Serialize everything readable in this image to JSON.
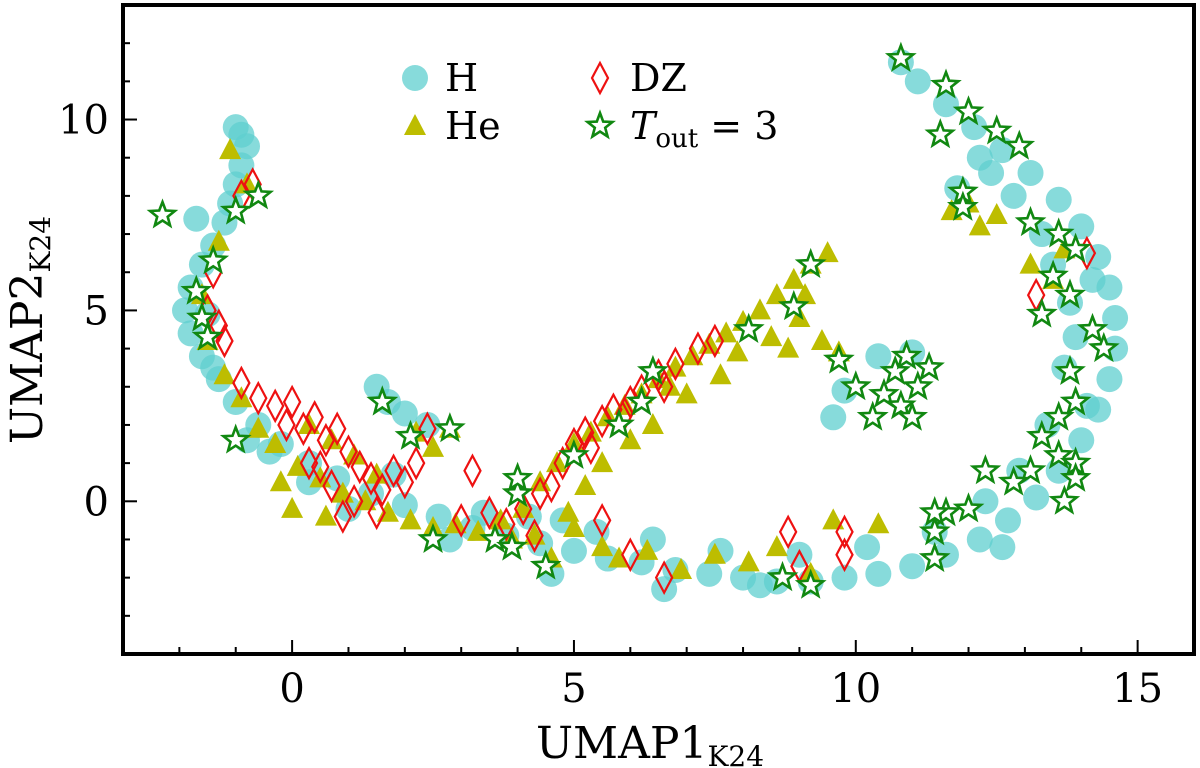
{
  "chart_data": {
    "type": "scatter",
    "title": "",
    "xlabel": "UMAP1",
    "xlabel_sub": "K24",
    "ylabel": "UMAP2",
    "ylabel_sub": "K24",
    "xlim": [
      -3,
      16
    ],
    "ylim": [
      -4,
      13
    ],
    "xticks": [
      0,
      5,
      10,
      15
    ],
    "yticks": [
      0,
      5,
      10
    ],
    "grid": false,
    "legend_position": "top-center",
    "colors": {
      "H": "#5fcfcf",
      "He": "#bdbd00",
      "DZ": "#ee1111",
      "Tout": "#118811"
    },
    "legend": [
      {
        "key": "H",
        "label": "H",
        "marker": "circle"
      },
      {
        "key": "He",
        "label": "He",
        "marker": "triangle"
      },
      {
        "key": "DZ",
        "label": "DZ",
        "marker": "diamond"
      },
      {
        "key": "Tout",
        "label": "T",
        "label_sub": "out",
        "label_suffix": " = 3",
        "marker": "star"
      }
    ],
    "series": [
      {
        "name": "H",
        "points": [
          [
            -1.0,
            9.8
          ],
          [
            -0.9,
            9.6
          ],
          [
            -0.8,
            9.3
          ],
          [
            -0.9,
            8.8
          ],
          [
            -1.0,
            8.3
          ],
          [
            -1.1,
            7.8
          ],
          [
            -1.2,
            7.3
          ],
          [
            -1.7,
            7.4
          ],
          [
            -1.4,
            6.7
          ],
          [
            -1.6,
            6.2
          ],
          [
            -1.8,
            5.6
          ],
          [
            -1.9,
            5.0
          ],
          [
            -1.8,
            4.4
          ],
          [
            -1.6,
            3.8
          ],
          [
            -1.3,
            3.2
          ],
          [
            -1.0,
            2.6
          ],
          [
            -0.6,
            2.0
          ],
          [
            -0.2,
            1.5
          ],
          [
            0.3,
            1.0
          ],
          [
            0.8,
            0.6
          ],
          [
            1.4,
            0.2
          ],
          [
            2.0,
            -0.1
          ],
          [
            2.6,
            -0.4
          ],
          [
            3.2,
            -0.7
          ],
          [
            3.8,
            -0.9
          ],
          [
            4.4,
            -1.1
          ],
          [
            5.0,
            -1.3
          ],
          [
            5.6,
            -1.5
          ],
          [
            6.2,
            -1.6
          ],
          [
            6.8,
            -1.8
          ],
          [
            7.4,
            -1.9
          ],
          [
            8.0,
            -2.0
          ],
          [
            8.6,
            -2.1
          ],
          [
            9.2,
            -2.1
          ],
          [
            9.8,
            -2.0
          ],
          [
            10.4,
            -1.9
          ],
          [
            11.0,
            -1.7
          ],
          [
            11.6,
            -1.4
          ],
          [
            12.2,
            -1.0
          ],
          [
            12.7,
            -0.5
          ],
          [
            13.2,
            0.1
          ],
          [
            13.6,
            0.8
          ],
          [
            14.0,
            1.6
          ],
          [
            14.3,
            2.4
          ],
          [
            14.5,
            3.2
          ],
          [
            14.6,
            4.0
          ],
          [
            14.6,
            4.8
          ],
          [
            14.5,
            5.6
          ],
          [
            14.3,
            6.4
          ],
          [
            14.0,
            7.2
          ],
          [
            13.6,
            7.9
          ],
          [
            13.1,
            8.6
          ],
          [
            12.6,
            9.2
          ],
          [
            12.1,
            9.8
          ],
          [
            11.6,
            10.4
          ],
          [
            11.1,
            11.0
          ],
          [
            10.8,
            11.5
          ],
          [
            11.8,
            8.2
          ],
          [
            12.2,
            9.0
          ],
          [
            12.8,
            8.0
          ],
          [
            13.3,
            7.0
          ],
          [
            13.8,
            5.2
          ],
          [
            13.7,
            3.5
          ],
          [
            13.4,
            2.0
          ],
          [
            12.9,
            0.8
          ],
          [
            12.3,
            0.0
          ],
          [
            11.4,
            -0.8
          ],
          [
            10.2,
            -1.2
          ],
          [
            9.0,
            -1.4
          ],
          [
            7.6,
            -1.3
          ],
          [
            6.4,
            -1.0
          ],
          [
            5.4,
            -0.8
          ],
          [
            4.8,
            -0.5
          ],
          [
            4.2,
            -0.4
          ],
          [
            3.4,
            -0.3
          ],
          [
            1.8,
            0.7
          ],
          [
            1.5,
            3.0
          ],
          [
            1.7,
            2.6
          ],
          [
            2.0,
            2.3
          ],
          [
            2.4,
            2.0
          ],
          [
            9.6,
            2.2
          ],
          [
            9.8,
            2.9
          ],
          [
            10.4,
            3.8
          ],
          [
            11.0,
            3.9
          ],
          [
            0.3,
            0.5
          ],
          [
            -0.4,
            1.3
          ],
          [
            -1.5,
            4.9
          ],
          [
            13.9,
            4.3
          ],
          [
            14.2,
            5.8
          ],
          [
            12.6,
            -1.2
          ],
          [
            8.3,
            -2.2
          ],
          [
            6.6,
            -2.3
          ],
          [
            4.6,
            -1.9
          ],
          [
            2.8,
            -1.0
          ],
          [
            1.0,
            -0.2
          ],
          [
            -0.8,
            1.6
          ],
          [
            -1.4,
            3.5
          ],
          [
            14.1,
            2.5
          ],
          [
            13.5,
            6.2
          ],
          [
            12.4,
            8.6
          ]
        ]
      },
      {
        "name": "He",
        "points": [
          [
            -1.1,
            9.2
          ],
          [
            -0.8,
            8.3
          ],
          [
            -1.3,
            6.8
          ],
          [
            -1.6,
            5.4
          ],
          [
            -1.5,
            4.2
          ],
          [
            -1.2,
            3.3
          ],
          [
            -0.9,
            2.7
          ],
          [
            -0.6,
            1.9
          ],
          [
            -0.3,
            1.5
          ],
          [
            0.1,
            0.9
          ],
          [
            0.5,
            0.6
          ],
          [
            0.9,
            0.2
          ],
          [
            1.3,
            0.0
          ],
          [
            1.7,
            -0.3
          ],
          [
            2.1,
            -0.5
          ],
          [
            2.5,
            -0.7
          ],
          [
            2.9,
            -0.6
          ],
          [
            3.3,
            -0.8
          ],
          [
            3.7,
            -0.5
          ],
          [
            4.1,
            -0.2
          ],
          [
            4.4,
            0.5
          ],
          [
            4.7,
            1.0
          ],
          [
            5.0,
            1.5
          ],
          [
            5.3,
            1.8
          ],
          [
            5.6,
            2.2
          ],
          [
            5.9,
            2.5
          ],
          [
            6.2,
            2.8
          ],
          [
            6.5,
            3.2
          ],
          [
            6.8,
            3.5
          ],
          [
            7.1,
            3.8
          ],
          [
            7.4,
            4.1
          ],
          [
            7.7,
            4.4
          ],
          [
            8.0,
            4.7
          ],
          [
            8.3,
            5.0
          ],
          [
            8.6,
            5.4
          ],
          [
            8.9,
            5.8
          ],
          [
            9.2,
            6.2
          ],
          [
            9.5,
            6.5
          ],
          [
            9.0,
            4.8
          ],
          [
            9.4,
            4.2
          ],
          [
            9.7,
            3.9
          ],
          [
            5.8,
            -1.5
          ],
          [
            6.3,
            -1.3
          ],
          [
            6.9,
            -1.8
          ],
          [
            7.5,
            -1.4
          ],
          [
            8.1,
            -1.6
          ],
          [
            8.6,
            -1.2
          ],
          [
            9.2,
            -1.9
          ],
          [
            9.6,
            -0.5
          ],
          [
            10.4,
            -0.6
          ],
          [
            11.7,
            7.6
          ],
          [
            12.0,
            7.8
          ],
          [
            12.2,
            7.2
          ],
          [
            12.5,
            7.5
          ],
          [
            13.1,
            6.2
          ],
          [
            13.5,
            5.8
          ],
          [
            13.7,
            6.6
          ],
          [
            0.3,
            2.0
          ],
          [
            0.7,
            1.6
          ],
          [
            1.1,
            1.2
          ],
          [
            1.5,
            0.7
          ],
          [
            2.2,
            1.8
          ],
          [
            2.5,
            1.4
          ],
          [
            2.8,
            1.9
          ],
          [
            -0.2,
            0.5
          ],
          [
            0.0,
            -0.2
          ],
          [
            0.6,
            -0.4
          ],
          [
            3.9,
            -1.0
          ],
          [
            4.3,
            -0.9
          ],
          [
            4.6,
            -1.5
          ],
          [
            5.5,
            -1.2
          ],
          [
            5.0,
            -0.7
          ],
          [
            5.2,
            0.4
          ],
          [
            5.5,
            1.0
          ],
          [
            6.0,
            1.6
          ],
          [
            6.4,
            2.0
          ],
          [
            7.0,
            2.8
          ],
          [
            7.6,
            3.3
          ],
          [
            7.9,
            3.9
          ],
          [
            8.5,
            4.3
          ],
          [
            8.8,
            4.0
          ],
          [
            9.1,
            5.4
          ],
          [
            6.7,
            3.0
          ],
          [
            4.9,
            -0.3
          ]
        ]
      },
      {
        "name": "DZ",
        "points": [
          [
            -0.9,
            8.0
          ],
          [
            -0.7,
            8.3
          ],
          [
            -1.4,
            6.0
          ],
          [
            -1.5,
            5.0
          ],
          [
            -1.3,
            4.6
          ],
          [
            -1.2,
            4.2
          ],
          [
            -0.9,
            3.1
          ],
          [
            -0.6,
            2.7
          ],
          [
            -0.3,
            2.5
          ],
          [
            0.0,
            2.6
          ],
          [
            0.2,
            1.9
          ],
          [
            0.4,
            2.2
          ],
          [
            0.6,
            1.6
          ],
          [
            0.8,
            1.9
          ],
          [
            1.0,
            1.3
          ],
          [
            1.2,
            0.9
          ],
          [
            1.4,
            0.6
          ],
          [
            1.6,
            0.3
          ],
          [
            1.8,
            0.8
          ],
          [
            2.0,
            0.5
          ],
          [
            2.2,
            1.0
          ],
          [
            0.5,
            0.9
          ],
          [
            0.7,
            0.4
          ],
          [
            0.9,
            -0.4
          ],
          [
            1.1,
            0.0
          ],
          [
            1.5,
            -0.3
          ],
          [
            3.2,
            0.8
          ],
          [
            3.5,
            -0.3
          ],
          [
            3.8,
            -0.6
          ],
          [
            4.1,
            -0.2
          ],
          [
            4.3,
            -0.9
          ],
          [
            4.6,
            0.4
          ],
          [
            4.8,
            1.0
          ],
          [
            5.0,
            1.5
          ],
          [
            5.2,
            1.8
          ],
          [
            5.5,
            2.1
          ],
          [
            5.7,
            2.4
          ],
          [
            6.0,
            2.6
          ],
          [
            6.2,
            2.9
          ],
          [
            6.5,
            3.3
          ],
          [
            6.8,
            3.6
          ],
          [
            7.2,
            4.0
          ],
          [
            7.5,
            4.2
          ],
          [
            5.5,
            -0.5
          ],
          [
            6.0,
            -1.4
          ],
          [
            6.6,
            -2.0
          ],
          [
            8.8,
            -0.8
          ],
          [
            9.0,
            -1.7
          ],
          [
            9.8,
            -0.8
          ],
          [
            9.8,
            -1.4
          ],
          [
            13.2,
            5.4
          ],
          [
            14.1,
            6.5
          ],
          [
            4.4,
            0.2
          ],
          [
            3.0,
            -0.5
          ],
          [
            5.3,
            1.4
          ],
          [
            5.9,
            2.3
          ],
          [
            6.6,
            3.0
          ],
          [
            2.4,
            1.9
          ],
          [
            0.3,
            1.0
          ],
          [
            -0.1,
            2.0
          ]
        ]
      },
      {
        "name": "Tout",
        "points": [
          [
            -2.3,
            7.5
          ],
          [
            -1.0,
            7.6
          ],
          [
            -0.6,
            8.0
          ],
          [
            -1.4,
            6.3
          ],
          [
            -1.7,
            5.5
          ],
          [
            -1.6,
            4.8
          ],
          [
            -1.5,
            4.3
          ],
          [
            -1.0,
            1.6
          ],
          [
            1.6,
            2.6
          ],
          [
            2.1,
            1.7
          ],
          [
            2.8,
            1.9
          ],
          [
            2.5,
            -1.0
          ],
          [
            3.6,
            -1.0
          ],
          [
            3.9,
            -1.2
          ],
          [
            4.0,
            0.2
          ],
          [
            4.0,
            0.6
          ],
          [
            4.5,
            -1.7
          ],
          [
            5.0,
            1.2
          ],
          [
            5.8,
            2.0
          ],
          [
            6.2,
            2.6
          ],
          [
            6.4,
            3.4
          ],
          [
            8.1,
            4.5
          ],
          [
            8.9,
            5.1
          ],
          [
            9.2,
            6.2
          ],
          [
            8.7,
            -2.0
          ],
          [
            9.2,
            -2.2
          ],
          [
            9.7,
            3.7
          ],
          [
            10.0,
            3.0
          ],
          [
            10.3,
            2.2
          ],
          [
            10.5,
            2.8
          ],
          [
            10.7,
            3.4
          ],
          [
            10.9,
            3.8
          ],
          [
            11.1,
            3.0
          ],
          [
            11.3,
            3.5
          ],
          [
            10.8,
            2.5
          ],
          [
            11.0,
            2.2
          ],
          [
            10.8,
            11.6
          ],
          [
            11.6,
            10.9
          ],
          [
            12.0,
            10.2
          ],
          [
            12.5,
            9.7
          ],
          [
            12.9,
            9.3
          ],
          [
            13.1,
            7.3
          ],
          [
            13.6,
            7.0
          ],
          [
            13.9,
            6.6
          ],
          [
            13.5,
            5.9
          ],
          [
            13.8,
            5.4
          ],
          [
            13.3,
            4.9
          ],
          [
            14.2,
            4.5
          ],
          [
            14.4,
            4.0
          ],
          [
            13.8,
            3.4
          ],
          [
            13.9,
            2.6
          ],
          [
            13.6,
            2.2
          ],
          [
            13.3,
            1.7
          ],
          [
            13.6,
            1.2
          ],
          [
            13.9,
            1.0
          ],
          [
            13.1,
            0.8
          ],
          [
            12.8,
            0.5
          ],
          [
            12.3,
            0.8
          ],
          [
            12.0,
            -0.2
          ],
          [
            11.6,
            -0.3
          ],
          [
            11.4,
            -0.8
          ],
          [
            11.4,
            -1.5
          ],
          [
            11.4,
            -0.3
          ],
          [
            13.9,
            0.6
          ],
          [
            13.7,
            0.0
          ],
          [
            11.9,
            8.1
          ],
          [
            11.9,
            7.7
          ],
          [
            11.5,
            9.6
          ]
        ]
      }
    ]
  }
}
